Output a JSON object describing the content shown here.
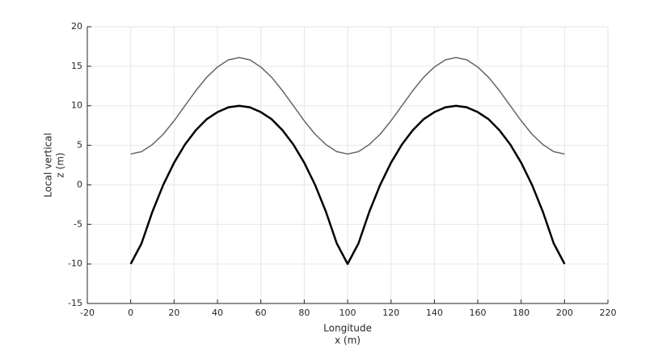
{
  "chart_data": {
    "type": "line",
    "xlabel": [
      "Longitude",
      "x (m)"
    ],
    "ylabel": [
      "Local vertical",
      "z (m)"
    ],
    "x": [
      0,
      5,
      10,
      15,
      20,
      25,
      30,
      35,
      40,
      45,
      50,
      55,
      60,
      65,
      70,
      75,
      80,
      85,
      90,
      95,
      100,
      105,
      110,
      115,
      120,
      125,
      130,
      135,
      140,
      145,
      150,
      155,
      160,
      165,
      170,
      175,
      180,
      185,
      190,
      195,
      200
    ],
    "series": [
      {
        "color": "#666666",
        "values": [
          3.9,
          4.2,
          5.1,
          6.4,
          8.1,
          10,
          11.9,
          13.6,
          14.9,
          15.8,
          16.1,
          15.8,
          14.9,
          13.6,
          11.9,
          10,
          8.1,
          6.4,
          5.1,
          4.2,
          3.9,
          4.2,
          5.1,
          6.4,
          8.1,
          10,
          11.9,
          13.6,
          14.9,
          15.8,
          16.1,
          15.8,
          14.9,
          13.6,
          11.9,
          10,
          8.1,
          6.4,
          5.1,
          4.2,
          3.9
        ]
      },
      {
        "color": "#000000",
        "values": [
          -10,
          -7.4,
          -3.4,
          0,
          2.8,
          5.1,
          6.9,
          8.3,
          9.2,
          9.8,
          10,
          9.8,
          9.2,
          8.3,
          6.9,
          5.1,
          2.8,
          0,
          -3.4,
          -7.4,
          -10,
          -7.4,
          -3.4,
          0,
          2.8,
          5.1,
          6.9,
          8.3,
          9.2,
          9.8,
          10,
          9.8,
          9.2,
          8.3,
          6.9,
          5.1,
          2.8,
          0,
          -3.4,
          -7.4,
          -10
        ]
      }
    ],
    "xlim": [
      -20,
      220
    ],
    "xticks": [
      -20,
      0,
      20,
      40,
      60,
      80,
      100,
      120,
      140,
      160,
      180,
      200,
      220
    ],
    "ylim": [
      -15,
      20
    ],
    "yticks": [
      -15,
      -10,
      -5,
      0,
      5,
      10,
      15,
      20
    ],
    "grid": true
  }
}
